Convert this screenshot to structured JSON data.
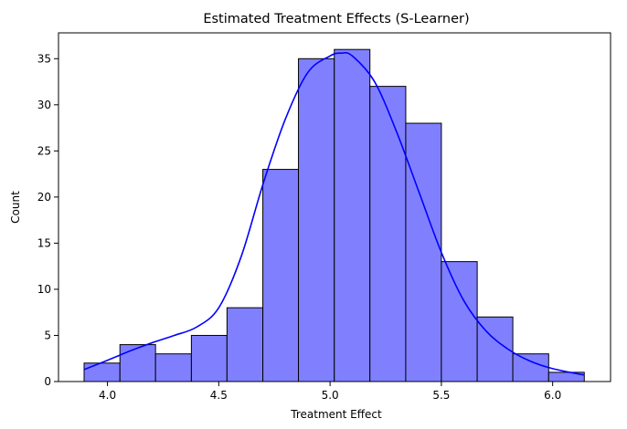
{
  "chart_data": {
    "type": "bar",
    "title": "Estimated Treatment Effects (S-Learner)",
    "xlabel": "Treatment Effect",
    "ylabel": "Count",
    "bin_edges": [
      3.895,
      4.056,
      4.216,
      4.377,
      4.537,
      4.698,
      4.858,
      5.019,
      5.179,
      5.34,
      5.5,
      5.661,
      5.821,
      5.982,
      6.142
    ],
    "values": [
      2,
      4,
      3,
      5,
      8,
      23,
      35,
      36,
      32,
      28,
      13,
      7,
      3,
      1
    ],
    "xlim": [
      3.78,
      6.26
    ],
    "ylim": [
      0,
      37.8
    ],
    "xticks": [
      "4.0",
      "4.5",
      "5.0",
      "5.5",
      "6.0"
    ],
    "xtick_values": [
      4.0,
      4.5,
      5.0,
      5.5,
      6.0
    ],
    "yticks": [
      "0",
      "5",
      "10",
      "15",
      "20",
      "25",
      "30",
      "35"
    ],
    "ytick_values": [
      0,
      5,
      10,
      15,
      20,
      25,
      30,
      35
    ],
    "kde": {
      "x": [
        3.895,
        4.0,
        4.1,
        4.2,
        4.3,
        4.4,
        4.5,
        4.6,
        4.7,
        4.8,
        4.9,
        5.0,
        5.05,
        5.1,
        5.2,
        5.3,
        5.4,
        5.5,
        5.6,
        5.7,
        5.8,
        5.9,
        6.0,
        6.142
      ],
      "y": [
        1.3,
        2.3,
        3.3,
        4.2,
        5.0,
        5.9,
        8.0,
        13.5,
        21.5,
        28.5,
        33.5,
        35.3,
        35.6,
        35.3,
        32.5,
        27.0,
        20.5,
        14.0,
        8.8,
        5.5,
        3.5,
        2.2,
        1.4,
        0.7
      ]
    },
    "grid": false,
    "legend": "none",
    "colors": {
      "bar_fill": "#8080ff",
      "bar_edge": "#000000",
      "kde_line": "#0000ff"
    }
  }
}
